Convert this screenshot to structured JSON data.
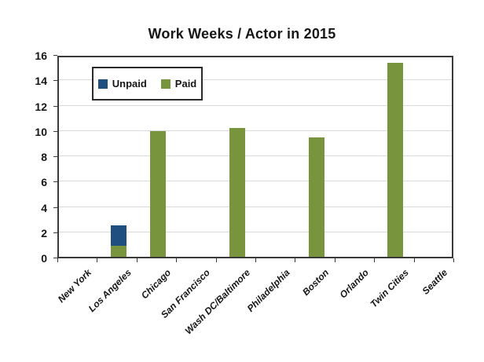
{
  "chart_data": {
    "type": "bar",
    "stacked": true,
    "title": "Work Weeks / Actor in 2015",
    "categories": [
      "New York",
      "Los Angeles",
      "Chicago",
      "San Francisco",
      "Wash DC/Baltimore",
      "Philadelphia",
      "Boston",
      "Orlando",
      "Twin Cities",
      "Seattle"
    ],
    "series": [
      {
        "name": "Unpaid",
        "color": "#1F4E80",
        "values": [
          0,
          1.6,
          0,
          0,
          0,
          0,
          0,
          0,
          0,
          0
        ]
      },
      {
        "name": "Paid",
        "color": "#78953E",
        "values": [
          0,
          0.9,
          9.9,
          0,
          10.2,
          0,
          9.4,
          0,
          15.3,
          0
        ]
      }
    ],
    "ylim": [
      0,
      16
    ],
    "ytick_step": 2,
    "grid": true,
    "legend_position": "top-left-inside",
    "xlabel": "",
    "ylabel": ""
  }
}
